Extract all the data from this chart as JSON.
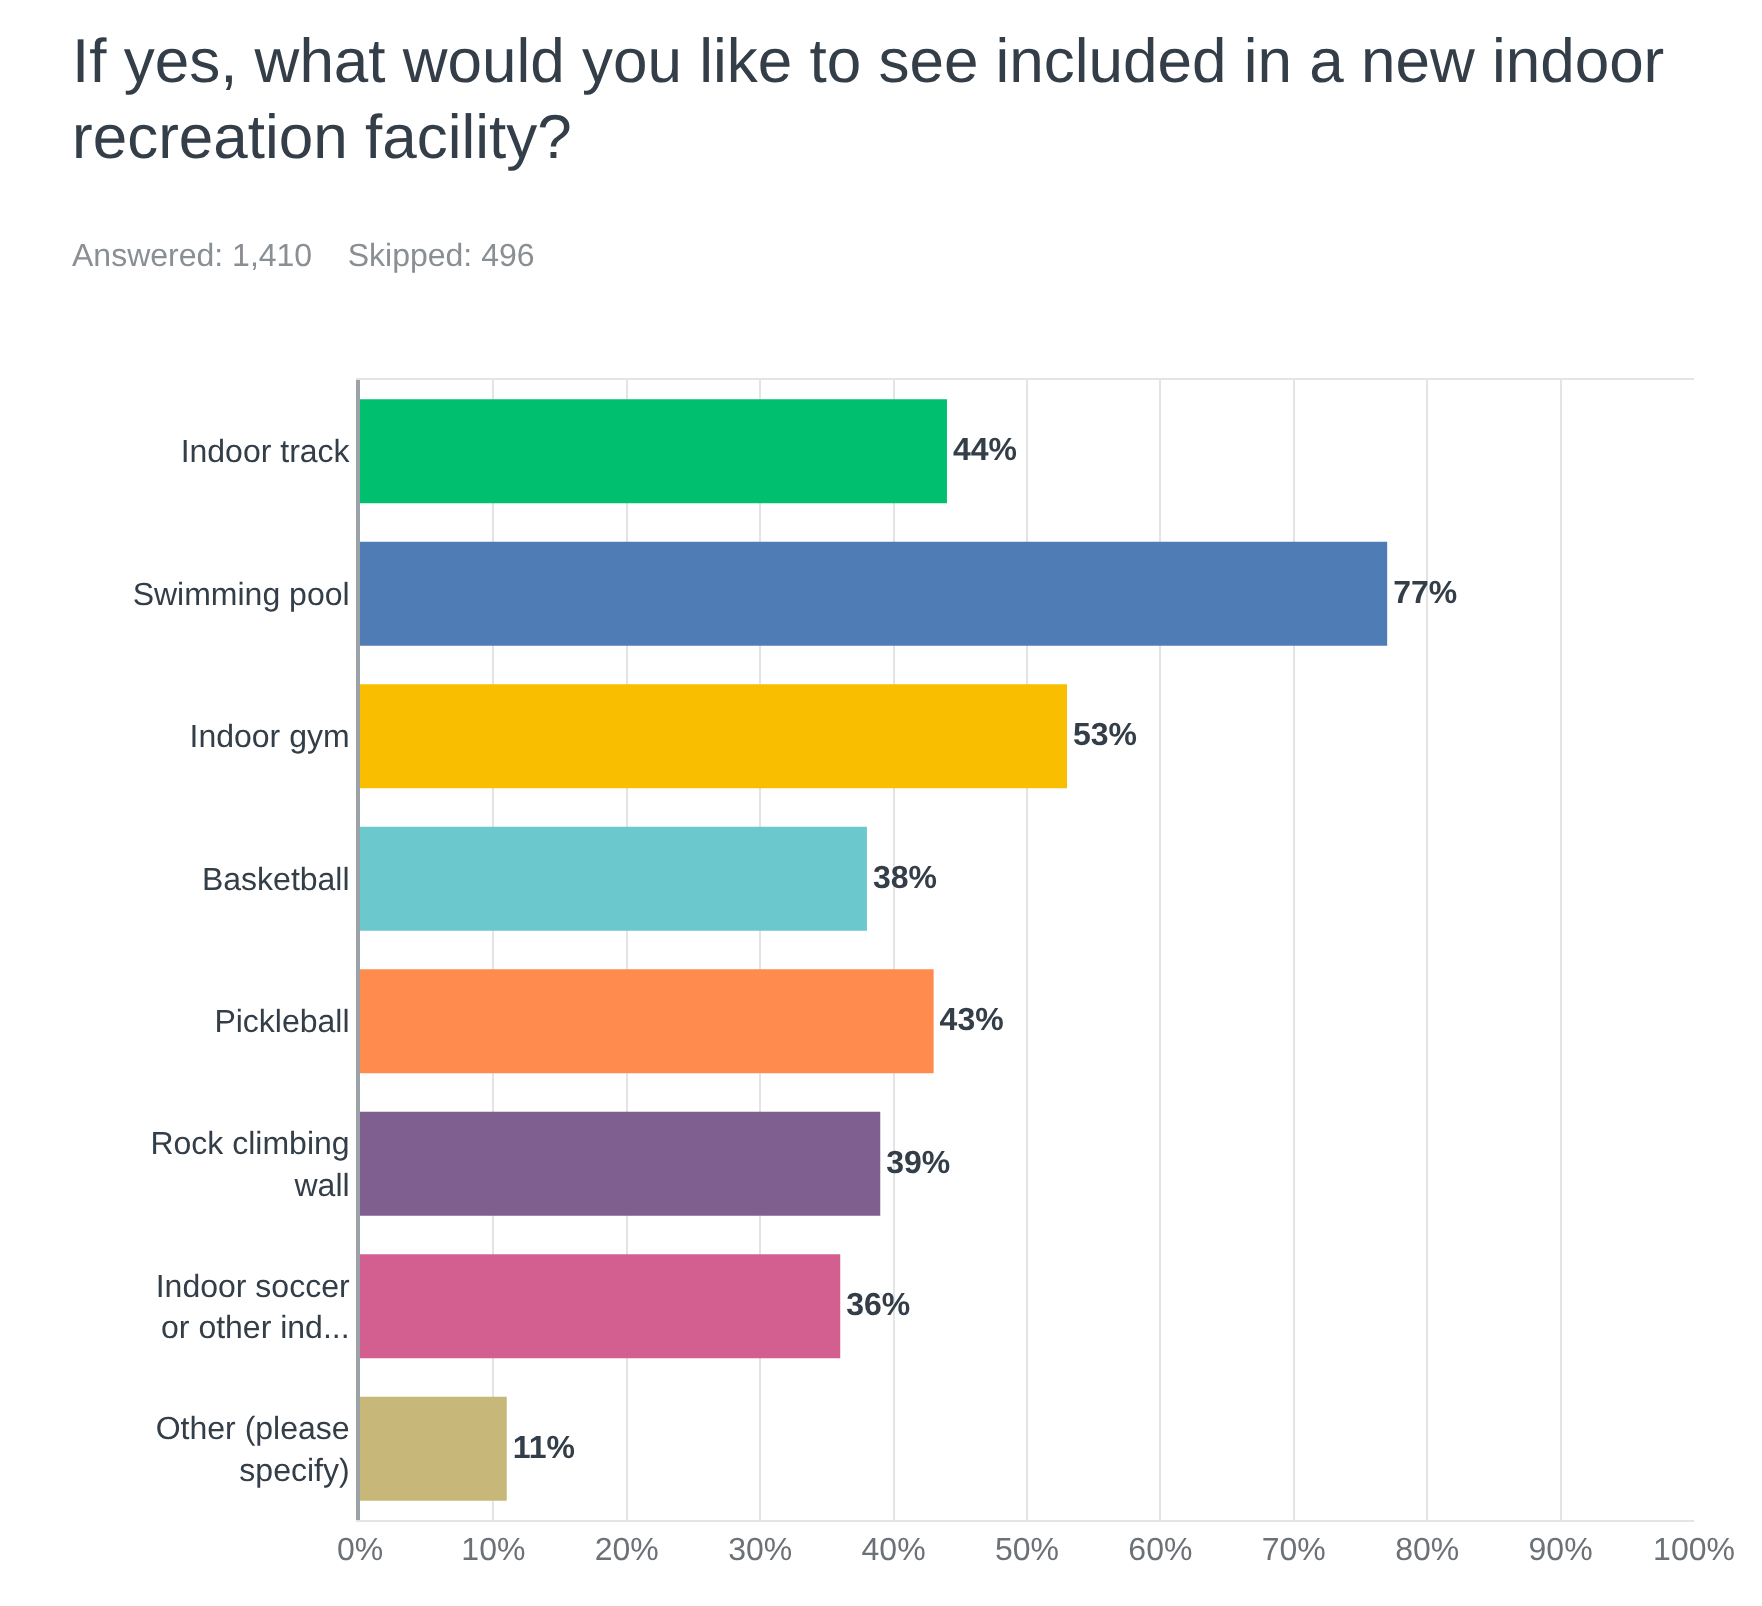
{
  "chart_data": {
    "type": "bar",
    "orientation": "horizontal",
    "title": "If yes, what would you like to see included in a new indoor recreation facility?",
    "subtitle": "Answered: 1,410    Skipped: 496",
    "categories": [
      "Indoor track",
      "Swimming pool",
      "Indoor gym",
      "Basketball",
      "Pickleball",
      "Rock climbing wall",
      "Indoor soccer or other ind...",
      "Other (please specify)"
    ],
    "values": [
      44,
      77,
      53,
      38,
      43,
      39,
      36,
      11
    ],
    "value_labels": [
      "44%",
      "77%",
      "53%",
      "38%",
      "43%",
      "39%",
      "36%",
      "11%"
    ],
    "colors": [
      "#00bf6f",
      "#507cb6",
      "#f9be00",
      "#6bc8cd",
      "#ff8b4f",
      "#7f5f8f",
      "#d25f90",
      "#c7b879"
    ],
    "xlim": [
      0,
      100
    ],
    "xticks": [
      {
        "value": 0,
        "label": "0%"
      },
      {
        "value": 10,
        "label": "10%"
      },
      {
        "value": 20,
        "label": "20%"
      },
      {
        "value": 30,
        "label": "30%"
      },
      {
        "value": 40,
        "label": "40%"
      },
      {
        "value": 50,
        "label": "50%"
      },
      {
        "value": 60,
        "label": "60%"
      },
      {
        "value": 70,
        "label": "70%"
      },
      {
        "value": 80,
        "label": "80%"
      },
      {
        "value": 90,
        "label": "90%"
      },
      {
        "value": 100,
        "label": "100%"
      }
    ],
    "grid": "x"
  }
}
